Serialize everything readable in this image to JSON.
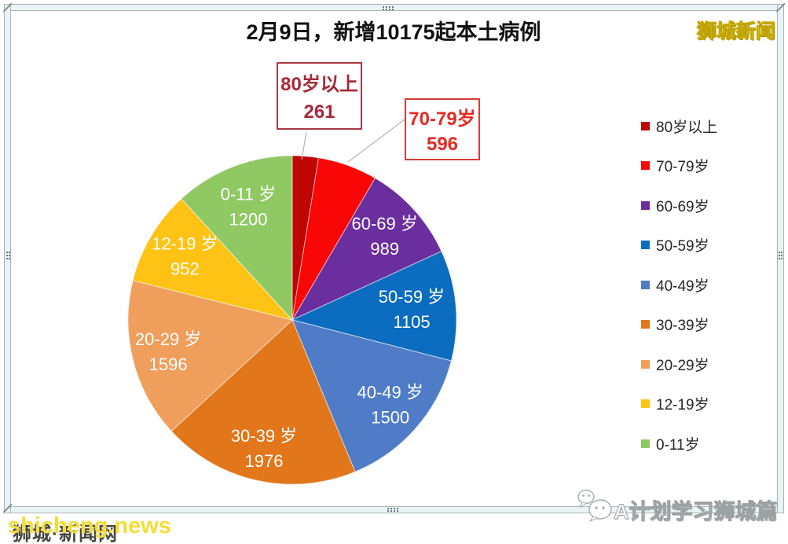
{
  "header": {
    "title": "2月9日，新增10175起本土病例",
    "logo": "狮城新闻"
  },
  "callouts": [
    {
      "label": "80岁以上",
      "value": "261"
    },
    {
      "label": "70-79岁",
      "value": "596"
    }
  ],
  "chart_data": {
    "type": "pie",
    "title": "2月9日，新增10175起本土病例",
    "total": 10175,
    "start_angle_deg": 0,
    "direction": "clockwise",
    "legend_position": "right",
    "slices": [
      {
        "label": "80岁以上",
        "value": 261,
        "color": "#c00505",
        "inner_label": false
      },
      {
        "label": "70-79岁",
        "value": 596,
        "color": "#f90606",
        "inner_label": false
      },
      {
        "label": "60-69岁",
        "slice_label": "60-69 岁",
        "value": 989,
        "color": "#6b2e9e",
        "inner_label": true,
        "label_radius": 0.76
      },
      {
        "label": "50-59岁",
        "slice_label": "50-59 岁",
        "value": 1105,
        "color": "#0c6cbf",
        "inner_label": true,
        "label_radius": 0.73
      },
      {
        "label": "40-49岁",
        "slice_label": "40-49 岁",
        "value": 1500,
        "color": "#4f7bc7",
        "inner_label": true,
        "label_radius": 0.79
      },
      {
        "label": "30-39岁",
        "slice_label": "30-39 岁",
        "value": 1976,
        "color": "#e2761b",
        "inner_label": true,
        "label_radius": 0.8
      },
      {
        "label": "20-29岁",
        "slice_label": "20-29 岁",
        "value": 1596,
        "color": "#f09e5c",
        "inner_label": true,
        "label_radius": 0.78
      },
      {
        "label": "12-19岁",
        "slice_label": "12-19 岁",
        "value": 952,
        "color": "#ffc316",
        "inner_label": true,
        "label_radius": 0.76
      },
      {
        "label": "0-11岁",
        "slice_label": "0-11 岁",
        "value": 1200,
        "color": "#90c963",
        "inner_label": true,
        "label_radius": 0.74
      }
    ]
  },
  "watermarks": {
    "bottom_left_en": "shicheng.news",
    "bottom_left_cn": "狮城·新闻网",
    "bottom_right": "A计划学习狮城篇"
  }
}
